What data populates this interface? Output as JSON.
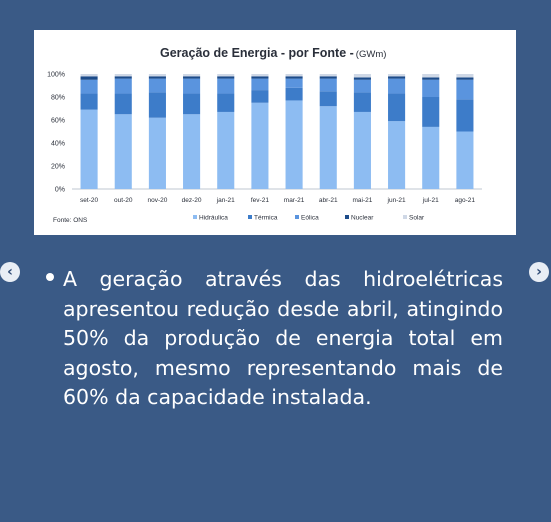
{
  "chart_data": {
    "type": "bar",
    "stacked": true,
    "title": "Geração de Energia - por Fonte",
    "title_unit": "(GWm)",
    "categories": [
      "set-20",
      "out-20",
      "nov-20",
      "dez-20",
      "jan-21",
      "fev-21",
      "mar-21",
      "abr-21",
      "mai-21",
      "jun-21",
      "jul-21",
      "ago-21"
    ],
    "series": [
      {
        "name": "Hidráulica",
        "values": [
          69,
          65,
          62,
          65,
          67,
          75,
          77,
          72,
          67,
          59,
          54,
          50
        ]
      },
      {
        "name": "Térmica",
        "values": [
          14,
          18,
          22,
          18,
          16,
          11,
          11,
          13,
          17,
          24,
          26,
          28
        ]
      },
      {
        "name": "Eólica",
        "values": [
          12,
          13,
          12,
          13,
          13,
          10,
          8,
          11,
          11,
          13,
          15,
          17
        ]
      },
      {
        "name": "Nuclear",
        "values": [
          3,
          2,
          2,
          2,
          2,
          2,
          2,
          2,
          2,
          2,
          2,
          2
        ]
      },
      {
        "name": "Solar",
        "values": [
          2,
          2,
          2,
          2,
          2,
          2,
          2,
          2,
          3,
          2,
          3,
          3
        ]
      }
    ],
    "ylim": [
      0,
      100
    ],
    "yticks": [
      "0%",
      "20%",
      "40%",
      "60%",
      "80%",
      "100%"
    ],
    "legend_position": "bottom",
    "source": "Fonte: ONS",
    "colors": {
      "Hidráulica": "#8dbcf2",
      "Térmica": "#3d7cc9",
      "Eólica": "#5a94de",
      "Nuclear": "#1d4c8a",
      "Solar": "#cfd8e6"
    },
    "panel_bg": "#ffffff",
    "text_color": "#2a2f3a"
  },
  "bullet_text": "A geração através das hidroelétricas apresentou redução desde abril, atingindo 50% da produção de energia total em agosto, mesmo representando mais de 60% da capacidade instalada.",
  "nav": {
    "prev_icon": "chevron-left-icon",
    "next_icon": "chevron-right-icon",
    "prev_glyph": "‹",
    "next_glyph": "›"
  }
}
